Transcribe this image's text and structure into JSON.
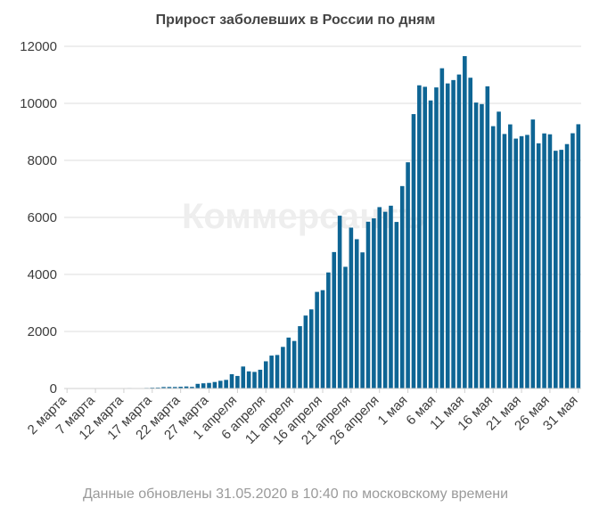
{
  "chart_data": {
    "type": "bar",
    "title": "Прирост заболевших в России по дням",
    "footer": "Данные обновлены 31.05.2020 в 10:40 по московскому времени",
    "watermark": "Коммерсантъ",
    "ylim": [
      0,
      12000
    ],
    "yticks": [
      0,
      2000,
      4000,
      6000,
      8000,
      10000,
      12000
    ],
    "grid": true,
    "bar_color": "#0e6594",
    "xtick_labels": [
      "2 марта",
      "7 марта",
      "12 марта",
      "17 марта",
      "22 марта",
      "27 марта",
      "1 апреля",
      "6 апреля",
      "11 апреля",
      "16 апреля",
      "21 апреля",
      "26 апреля",
      "1 мая",
      "6 мая",
      "11 мая",
      "16 мая",
      "21 мая",
      "26 мая",
      "31 мая"
    ],
    "x": [
      "2 марта",
      "3 марта",
      "4 марта",
      "5 марта",
      "6 марта",
      "7 марта",
      "8 марта",
      "9 марта",
      "10 марта",
      "11 марта",
      "12 марта",
      "13 марта",
      "14 марта",
      "15 марта",
      "16 марта",
      "17 марта",
      "18 марта",
      "19 марта",
      "20 марта",
      "21 марта",
      "22 марта",
      "23 марта",
      "24 марта",
      "25 марта",
      "26 марта",
      "27 марта",
      "28 марта",
      "29 марта",
      "30 марта",
      "31 марта",
      "1 апреля",
      "2 апреля",
      "3 апреля",
      "4 апреля",
      "5 апреля",
      "6 апреля",
      "7 апреля",
      "8 апреля",
      "9 апреля",
      "10 апреля",
      "11 апреля",
      "12 апреля",
      "13 апреля",
      "14 апреля",
      "15 апреля",
      "16 апреля",
      "17 апреля",
      "18 апреля",
      "19 апреля",
      "20 апреля",
      "21 апреля",
      "22 апреля",
      "23 апреля",
      "24 апреля",
      "25 апреля",
      "26 апреля",
      "27 апреля",
      "28 апреля",
      "29 апреля",
      "30 апреля",
      "1 мая",
      "2 мая",
      "3 мая",
      "4 мая",
      "5 мая",
      "6 мая",
      "7 мая",
      "8 мая",
      "9 мая",
      "10 мая",
      "11 мая",
      "12 мая",
      "13 мая",
      "14 мая",
      "15 мая",
      "16 мая",
      "17 мая",
      "18 мая",
      "19 мая",
      "20 мая",
      "21 мая",
      "22 мая",
      "23 мая",
      "24 мая",
      "25 мая",
      "26 мая",
      "27 мая",
      "28 мая",
      "29 мая",
      "30 мая",
      "31 мая"
    ],
    "values": [
      0,
      0,
      0,
      0,
      1,
      0,
      4,
      0,
      3,
      8,
      6,
      17,
      4,
      14,
      20,
      30,
      33,
      52,
      54,
      53,
      61,
      71,
      57,
      163,
      182,
      196,
      228,
      270,
      302,
      501,
      440,
      771,
      601,
      582,
      658,
      954,
      1154,
      1175,
      1459,
      1786,
      1667,
      2186,
      2558,
      2774,
      3388,
      3448,
      4070,
      4785,
      6060,
      4268,
      5642,
      5236,
      4774,
      5849,
      5966,
      6361,
      6198,
      6411,
      5841,
      7099,
      7933,
      9623,
      10633,
      10581,
      10102,
      10559,
      11231,
      10699,
      10817,
      11012,
      11656,
      10899,
      10028,
      9974,
      10598,
      9200,
      9709,
      8926,
      9263,
      8764,
      8849,
      8894,
      9434,
      8599,
      8946,
      8915,
      8338,
      8371,
      8572,
      8952,
      9268
    ]
  }
}
